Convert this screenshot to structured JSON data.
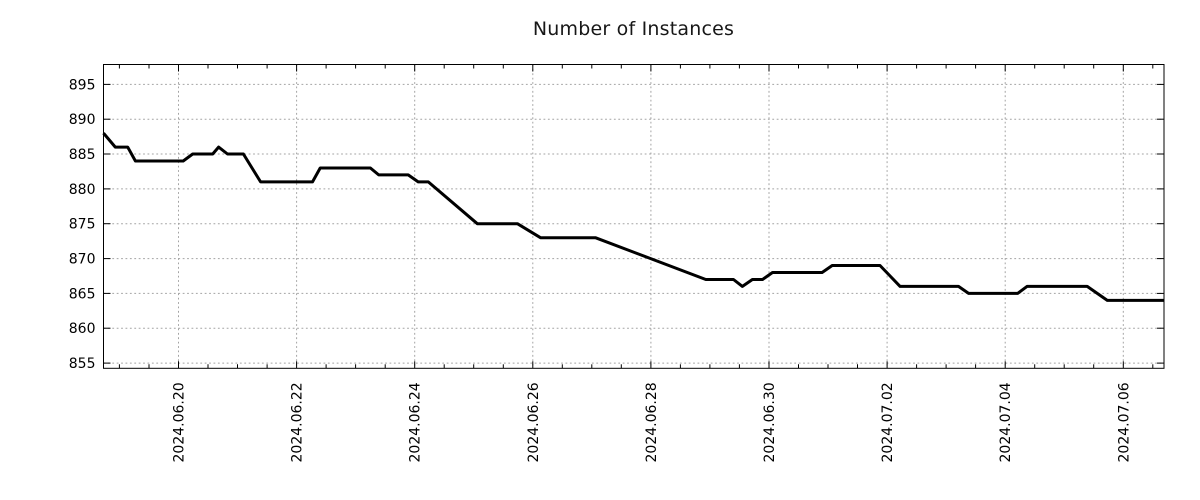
{
  "chart_data": {
    "type": "line",
    "title": "Number of Instances",
    "legend": null,
    "grid": {
      "show": true,
      "style": "dotted",
      "color": "#a3a3a3"
    },
    "x_axis": {
      "tick_labels": [
        "2024.06.20",
        "2024.06.22",
        "2024.06.24",
        "2024.06.26",
        "2024.06.28",
        "2024.06.30",
        "2024.07.02",
        "2024.07.04",
        "2024.07.06"
      ],
      "tick_days": [
        0,
        2,
        4,
        6,
        8,
        10,
        12,
        14,
        16
      ],
      "minor_tick_step_days": 0.5,
      "lim_days": [
        -1.27,
        16.69
      ]
    },
    "y_axis": {
      "ticks": [
        855,
        860,
        865,
        870,
        875,
        880,
        885,
        890,
        895
      ],
      "lim": [
        854.25,
        897.85
      ]
    },
    "series": [
      {
        "name": "instances",
        "color": "#000000",
        "width": 3,
        "points": [
          [
            -1.27,
            888
          ],
          [
            -1.07,
            886
          ],
          [
            -0.86,
            886
          ],
          [
            -0.73,
            884
          ],
          [
            0.08,
            884
          ],
          [
            0.24,
            885
          ],
          [
            0.58,
            885
          ],
          [
            0.68,
            886
          ],
          [
            0.83,
            885
          ],
          [
            1.1,
            885
          ],
          [
            1.39,
            881
          ],
          [
            2.27,
            881
          ],
          [
            2.4,
            883
          ],
          [
            3.25,
            883
          ],
          [
            3.39,
            882
          ],
          [
            3.89,
            882
          ],
          [
            4.06,
            881
          ],
          [
            4.23,
            881
          ],
          [
            5.06,
            875
          ],
          [
            5.74,
            875
          ],
          [
            6.13,
            873
          ],
          [
            7.06,
            873
          ],
          [
            8.93,
            867
          ],
          [
            9.4,
            867
          ],
          [
            9.55,
            866
          ],
          [
            9.72,
            867
          ],
          [
            9.89,
            867
          ],
          [
            10.06,
            868
          ],
          [
            10.9,
            868
          ],
          [
            11.07,
            869
          ],
          [
            11.88,
            869
          ],
          [
            12.22,
            866
          ],
          [
            13.21,
            866
          ],
          [
            13.38,
            865
          ],
          [
            14.21,
            865
          ],
          [
            14.37,
            866
          ],
          [
            15.39,
            866
          ],
          [
            15.73,
            864
          ],
          [
            16.69,
            864
          ]
        ]
      }
    ]
  }
}
